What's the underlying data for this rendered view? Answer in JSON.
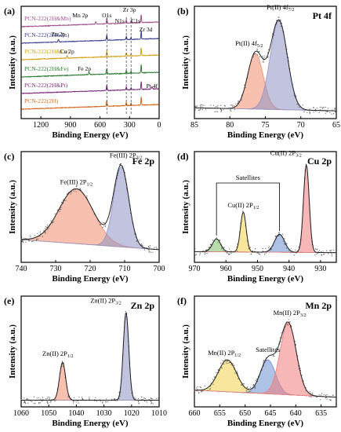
{
  "chart_data": [
    {
      "type": "line",
      "panel": "(a)",
      "xlabel": "Binding Energy (eV)",
      "ylabel": "Intensity (a.u.)",
      "xlim": [
        1400,
        0
      ],
      "xticks": [
        1200,
        900,
        600,
        300,
        0
      ],
      "series": [
        {
          "name": "PCN-222(2H&Mn)",
          "color": "#a0508c"
        },
        {
          "name": "PCN-222(2H&Zn)",
          "color": "#3a3f8f"
        },
        {
          "name": "PCN-222(2H&Cu)",
          "color": "#d4a017"
        },
        {
          "name": "PCN-222(2H&Fe)",
          "color": "#2e7d32"
        },
        {
          "name": "PCN-222(2H&Pt)",
          "color": "#7b2d7b"
        },
        {
          "name": "PCN-222(2H)",
          "color": "#d2691e"
        }
      ],
      "peaks": [
        {
          "label": "Mn 2p",
          "x": 642
        },
        {
          "label": "O1s",
          "x": 531
        },
        {
          "label": "N1s",
          "x": 400
        },
        {
          "label": "Zr 3p",
          "x": 333
        },
        {
          "label": "C1s",
          "x": 285
        },
        {
          "label": "Zr 3d",
          "x": 182
        },
        {
          "label": "Zn 2p",
          "x": 1022
        },
        {
          "label": "Cu 2p",
          "x": 934
        },
        {
          "label": "Fe 2p",
          "x": 711
        },
        {
          "label": "Pt 4f",
          "x": 72
        }
      ]
    },
    {
      "type": "line",
      "panel": "(b)",
      "title": "Pt 4f",
      "xlabel": "Binding Energy (eV)",
      "ylabel": "Intensity (a.u.)",
      "xlim": [
        85,
        65
      ],
      "xticks": [
        85,
        80,
        75,
        70,
        65
      ],
      "components": [
        {
          "label": "Pt(II) 4f5/2",
          "center": 76.4,
          "color": "#f08c6e"
        },
        {
          "label": "Pt(II) 4f7/2",
          "center": 73.1,
          "color": "#8f94c4"
        }
      ]
    },
    {
      "type": "line",
      "panel": "(c)",
      "title": "Fe 2p",
      "xlabel": "Binding Energy (eV)",
      "ylabel": "Intensity (a.u.)",
      "xlim": [
        740,
        700
      ],
      "xticks": [
        740,
        730,
        720,
        710,
        700
      ],
      "components": [
        {
          "label": "Fe(III) 2P1/2",
          "center": 724,
          "color": "#f08c6e"
        },
        {
          "label": "Fe(III) 2P3/2",
          "center": 711,
          "color": "#8f94c4"
        }
      ]
    },
    {
      "type": "line",
      "panel": "(d)",
      "title": "Cu 2p",
      "xlabel": "Binding Energy (eV)",
      "ylabel": "Intensity (a.u.)",
      "xlim": [
        970,
        925
      ],
      "xticks": [
        970,
        960,
        950,
        940,
        930
      ],
      "components": [
        {
          "label": "Satellites",
          "center": 963,
          "color": "#7fbf6a"
        },
        {
          "label": "Cu(II) 2P1/2",
          "center": 954.5,
          "color": "#f2d24a"
        },
        {
          "label": "Satellites",
          "center": 943,
          "color": "#6b8fd0"
        },
        {
          "label": "Cu(II) 2P3/2",
          "center": 934.5,
          "color": "#f07b7b"
        }
      ]
    },
    {
      "type": "line",
      "panel": "(e)",
      "title": "Zn 2p",
      "xlabel": "Binding Energy (eV)",
      "ylabel": "Intensity (a.u.)",
      "xlim": [
        1060,
        1010
      ],
      "xticks": [
        1060,
        1050,
        1040,
        1030,
        1020,
        1010
      ],
      "components": [
        {
          "label": "Zn(II) 2P1/2",
          "center": 1045,
          "color": "#f08c6e"
        },
        {
          "label": "Zn(II) 2P3/2",
          "center": 1022,
          "color": "#8f94c4"
        }
      ]
    },
    {
      "type": "line",
      "panel": "(f)",
      "title": "Mn 2p",
      "xlabel": "Binding Energy (eV)",
      "ylabel": "Intensity (a.u.)",
      "xlim": [
        660,
        632
      ],
      "xticks": [
        660,
        655,
        650,
        645,
        640,
        635
      ],
      "components": [
        {
          "label": "Mn(II) 2P1/2",
          "center": 653.5,
          "color": "#f2d24a"
        },
        {
          "label": "Satellites",
          "center": 645.5,
          "color": "#6b8fd0"
        },
        {
          "label": "Mn(II) 2P3/2",
          "center": 641.5,
          "color": "#f07b7b"
        }
      ]
    }
  ]
}
